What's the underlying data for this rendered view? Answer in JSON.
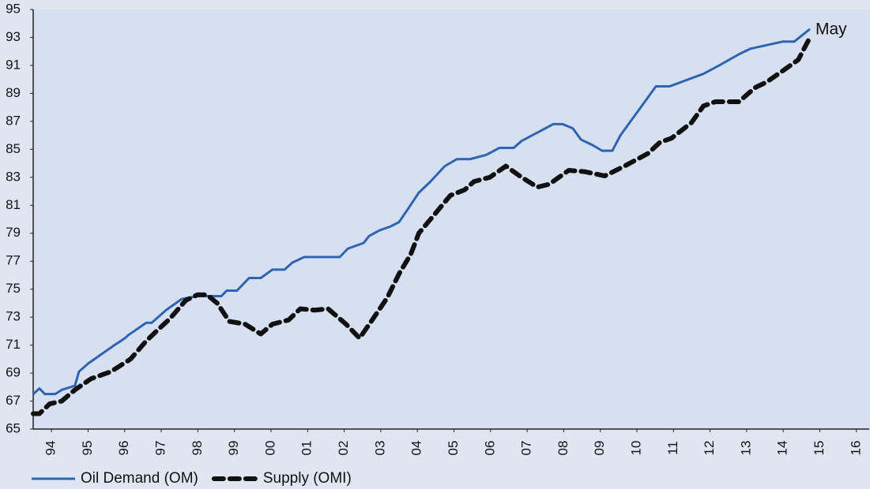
{
  "chart_data": {
    "type": "line",
    "annotation": "May",
    "xlim": [
      1994,
      2016.85
    ],
    "ylim": [
      65,
      95
    ],
    "yticks": [
      65,
      67,
      69,
      71,
      73,
      75,
      77,
      79,
      81,
      83,
      85,
      87,
      89,
      91,
      93,
      95
    ],
    "xticks": [
      {
        "value": 1994.5,
        "label": "94"
      },
      {
        "value": 1995.5,
        "label": "95"
      },
      {
        "value": 1996.5,
        "label": "96"
      },
      {
        "value": 1997.5,
        "label": "97"
      },
      {
        "value": 1998.5,
        "label": "98"
      },
      {
        "value": 1999.5,
        "label": "99"
      },
      {
        "value": 2000.5,
        "label": "00"
      },
      {
        "value": 2001.5,
        "label": "01"
      },
      {
        "value": 2002.5,
        "label": "02"
      },
      {
        "value": 2003.5,
        "label": "03"
      },
      {
        "value": 2004.5,
        "label": "04"
      },
      {
        "value": 2005.5,
        "label": "05"
      },
      {
        "value": 2006.5,
        "label": "06"
      },
      {
        "value": 2007.5,
        "label": "07"
      },
      {
        "value": 2008.5,
        "label": "08"
      },
      {
        "value": 2009.5,
        "label": "09"
      },
      {
        "value": 2010.5,
        "label": "10"
      },
      {
        "value": 2011.5,
        "label": "11"
      },
      {
        "value": 2012.5,
        "label": "12"
      },
      {
        "value": 2013.5,
        "label": "13"
      },
      {
        "value": 2014.5,
        "label": "14"
      },
      {
        "value": 2015.5,
        "label": "15"
      },
      {
        "value": 2016.5,
        "label": "16"
      }
    ],
    "series": [
      {
        "name": "Oil Demand (OM)",
        "color": "#2f64b0",
        "style": "solid",
        "x": [
          1994.0,
          1994.17,
          1994.32,
          1994.6,
          1994.78,
          1995.14,
          1995.25,
          1995.51,
          1996.22,
          1996.51,
          1996.59,
          1997.09,
          1997.24,
          1997.63,
          1998.06,
          1998.49,
          1999.14,
          1999.29,
          1999.57,
          1999.9,
          2000.22,
          2000.54,
          2000.87,
          2001.08,
          2001.41,
          2002.38,
          2002.6,
          2003.03,
          2003.18,
          2003.46,
          2003.78,
          2004.0,
          2004.26,
          2004.54,
          2004.86,
          2005.25,
          2005.58,
          2005.94,
          2006.38,
          2006.74,
          2007.13,
          2007.35,
          2008.0,
          2008.21,
          2008.47,
          2008.75,
          2008.97,
          2009.29,
          2009.55,
          2009.83,
          2010.05,
          2011.02,
          2011.39,
          2012.32,
          2012.75,
          2013.29,
          2013.61,
          2014.48,
          2014.8,
          2015.23
        ],
        "values": [
          67.5,
          67.9,
          67.5,
          67.5,
          67.8,
          68.1,
          69.1,
          69.7,
          71.0,
          71.5,
          71.7,
          72.6,
          72.6,
          73.5,
          74.3,
          74.5,
          74.5,
          74.9,
          74.9,
          75.8,
          75.8,
          76.4,
          76.4,
          76.9,
          77.3,
          77.3,
          77.9,
          78.3,
          78.8,
          79.2,
          79.5,
          79.8,
          80.8,
          81.9,
          82.7,
          83.8,
          84.3,
          84.3,
          84.6,
          85.1,
          85.1,
          85.6,
          86.5,
          86.8,
          86.8,
          86.5,
          85.7,
          85.3,
          84.9,
          84.9,
          86.0,
          89.5,
          89.5,
          90.4,
          91.0,
          91.8,
          92.2,
          92.7,
          92.7,
          93.6
        ]
      },
      {
        "name": "Supply (OMI)",
        "color": "#111111",
        "style": "dashed",
        "x": [
          1994.0,
          1994.17,
          1994.45,
          1994.78,
          1995.14,
          1995.58,
          1996.12,
          1996.66,
          1997.09,
          1997.41,
          1997.74,
          1998.17,
          1998.49,
          1998.75,
          1999.03,
          1999.36,
          1999.79,
          2000.22,
          2000.54,
          2000.98,
          2001.3,
          2001.69,
          2002.06,
          2002.55,
          2002.92,
          2003.24,
          2003.68,
          2004.0,
          2004.32,
          2004.54,
          2004.86,
          2005.4,
          2005.79,
          2006.05,
          2006.48,
          2006.92,
          2007.35,
          2007.78,
          2008.1,
          2008.64,
          2009.08,
          2009.62,
          2010.16,
          2010.8,
          2011.13,
          2011.45,
          2011.99,
          2012.32,
          2012.64,
          2013.29,
          2013.72,
          2014.04,
          2014.48,
          2014.91,
          2015.23
        ],
        "values": [
          66.1,
          66.1,
          66.8,
          67.0,
          67.8,
          68.6,
          69.1,
          70.0,
          71.3,
          72.1,
          72.9,
          74.2,
          74.6,
          74.6,
          74.0,
          72.7,
          72.5,
          71.8,
          72.5,
          72.8,
          73.6,
          73.5,
          73.6,
          72.5,
          71.5,
          72.7,
          74.4,
          76.1,
          77.5,
          79.0,
          80.0,
          81.7,
          82.1,
          82.7,
          83.0,
          83.8,
          83.0,
          82.3,
          82.5,
          83.5,
          83.4,
          83.1,
          83.8,
          84.7,
          85.5,
          85.8,
          86.9,
          88.1,
          88.4,
          88.4,
          89.4,
          89.8,
          90.6,
          91.4,
          93.0
        ]
      }
    ],
    "legend": "bottom-left"
  }
}
